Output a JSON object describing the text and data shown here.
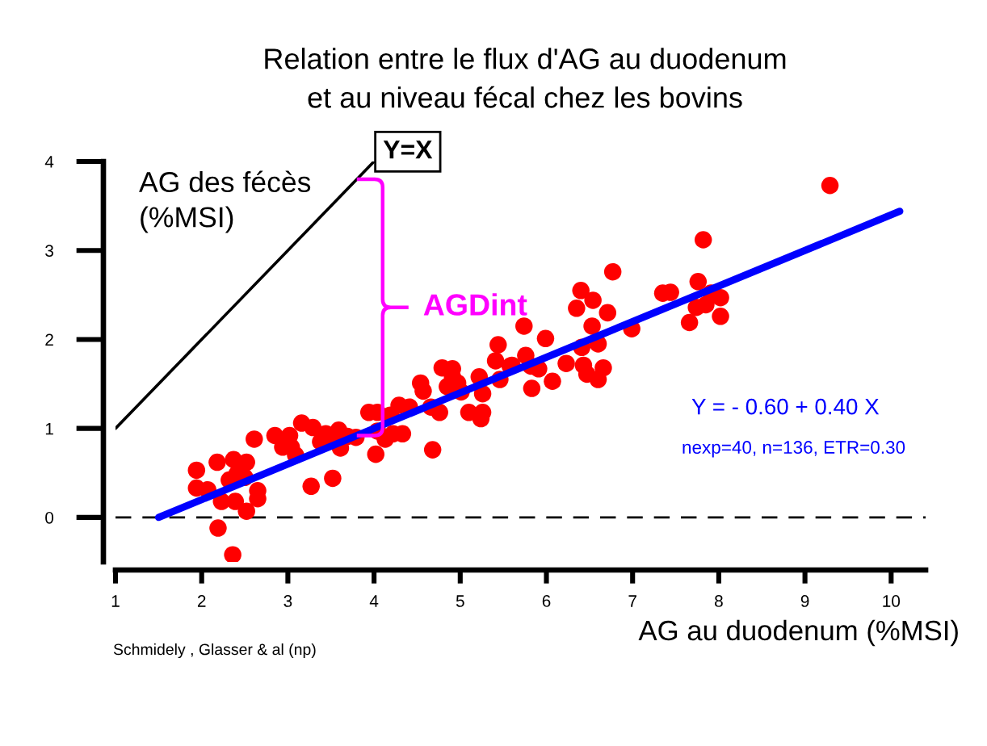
{
  "chart_data": {
    "type": "scatter",
    "title": "Relation entre le flux d'AG au duodenum\net au niveau fécal chez les bovins",
    "xlabel": "AG au duodenum (%MSI)",
    "ylabel": "AG des fécès\n(%MSI)",
    "xlim": [
      1,
      10.4
    ],
    "ylim": [
      -0.5,
      4
    ],
    "xticks": [
      1,
      2,
      3,
      4,
      5,
      6,
      7,
      8,
      9,
      10
    ],
    "yticks": [
      0,
      1,
      2,
      3,
      4
    ],
    "series": [
      {
        "color": "#ff0000",
        "marker": "circle",
        "x": [
          1.94,
          1.94,
          2.07,
          2.18,
          2.37,
          2.52,
          2.32,
          2.41,
          2.5,
          2.23,
          2.39,
          2.52,
          2.19,
          2.36,
          2.65,
          2.65,
          2.61,
          2.85,
          3.02,
          3.04,
          3.16,
          3.29,
          3.09,
          3.27,
          3.52,
          3.44,
          3.59,
          3.57,
          3.61,
          3.38,
          2.94,
          3.69,
          3.79,
          3.94,
          4.02,
          4.04,
          4.13,
          4.22,
          4.33,
          4.04,
          4.19,
          4.29,
          4.41,
          4.54,
          4.57,
          4.68,
          4.66,
          4.76,
          4.79,
          4.91,
          4.85,
          5.01,
          5.1,
          5.26,
          5.22,
          4.97,
          4.91,
          5.26,
          5.24,
          5.44,
          5.41,
          5.46,
          5.58,
          5.6,
          5.76,
          5.82,
          5.91,
          5.83,
          5.99,
          6.07,
          6.23,
          5.74,
          6.4,
          6.54,
          6.35,
          6.71,
          6.77,
          6.53,
          6.6,
          6.41,
          6.43,
          6.47,
          6.6,
          6.66,
          6.99,
          7.35,
          7.44,
          7.76,
          7.82,
          7.74,
          7.66,
          7.85,
          8.02,
          8.02,
          7.91,
          9.29
        ],
        "values": [
          0.53,
          0.33,
          0.31,
          0.62,
          0.65,
          0.62,
          0.42,
          0.49,
          0.45,
          0.18,
          0.18,
          0.07,
          -0.12,
          -0.42,
          0.3,
          0.21,
          0.88,
          0.92,
          0.92,
          0.79,
          1.06,
          1.01,
          0.7,
          0.35,
          0.44,
          0.94,
          0.98,
          0.85,
          0.78,
          0.85,
          0.79,
          0.91,
          0.9,
          1.18,
          0.71,
          0.97,
          0.88,
          0.94,
          0.94,
          1.18,
          1.15,
          1.26,
          1.24,
          1.51,
          1.42,
          0.76,
          1.24,
          1.18,
          1.68,
          1.58,
          1.47,
          1.41,
          1.18,
          1.18,
          1.58,
          1.51,
          1.67,
          1.39,
          1.11,
          1.94,
          1.76,
          1.55,
          1.7,
          1.71,
          1.82,
          1.7,
          1.67,
          1.45,
          2.01,
          1.53,
          1.73,
          2.15,
          2.55,
          2.44,
          2.35,
          2.3,
          2.76,
          2.15,
          1.95,
          1.91,
          1.71,
          1.61,
          1.55,
          1.68,
          2.12,
          2.52,
          2.53,
          2.65,
          3.12,
          2.36,
          2.19,
          2.39,
          2.47,
          2.26,
          2.52,
          3.73
        ]
      },
      {
        "type": "line",
        "name": "Y=X",
        "color": "#000000",
        "line_style": "solid",
        "x": [
          1,
          4
        ],
        "values": [
          1,
          4
        ]
      },
      {
        "type": "line",
        "color": "#0000ff",
        "line_style": "solid",
        "x": [
          1.5,
          10.1
        ],
        "values": [
          0.0,
          3.44
        ]
      }
    ],
    "ref_lines": [
      {
        "axis": "y",
        "value": 0,
        "color": "#000000",
        "line_style": "dashed"
      }
    ],
    "annotations": [
      "Y = - 0.60 + 0.40 X",
      "nexp=40, n=136, ETR=0.30",
      "Schmidely , Glasser & al (np)",
      {
        "text": "AGDint",
        "x": 3.8,
        "y": 0.92
      }
    ]
  }
}
